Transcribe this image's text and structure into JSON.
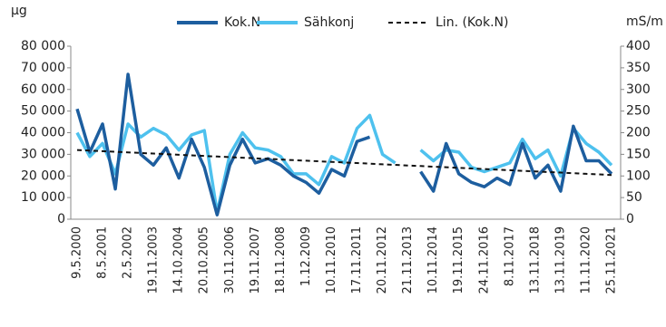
{
  "chart_data": {
    "type": "line",
    "y_unit": "µg",
    "y2_unit": "mS/m",
    "categories": [
      "9.5.2000",
      null,
      "8.5.2001",
      null,
      "2.5.2002",
      null,
      "19.11.2003",
      null,
      "14.10.2004",
      null,
      "20.10.2005",
      null,
      "30.11.2006",
      null,
      "19.11.2007",
      null,
      "18.11.2008",
      null,
      "1.12.2009",
      null,
      "10.11.2010",
      null,
      "17.11.2011",
      null,
      "20.11.2012",
      null,
      "21.11.2013",
      null,
      "10.11.2014",
      null,
      "19.11.2015",
      null,
      "24.11.2016",
      null,
      "8.11.2017",
      null,
      "13.11.2018",
      null,
      "13.11.2019",
      null,
      "11.11.2020",
      null,
      "25.11.2021"
    ],
    "series": [
      {
        "name": "Kok.N",
        "color": "#1d5e9f",
        "values": [
          51000,
          31000,
          44000,
          14000,
          67000,
          30000,
          25000,
          33000,
          19000,
          37000,
          24000,
          2000,
          25000,
          37000,
          26000,
          28000,
          25000,
          20000,
          17000,
          12000,
          23000,
          20000,
          36000,
          38000,
          null,
          null,
          null,
          22000,
          13000,
          35000,
          21000,
          17000,
          15000,
          19000,
          16000,
          35000,
          19000,
          25000,
          13000,
          43000,
          27000,
          27000,
          21000
        ]
      },
      {
        "name": "Sähkonj",
        "color": "#4ec1ee",
        "axis": "y2",
        "values": [
          200,
          145,
          175,
          105,
          220,
          190,
          210,
          195,
          160,
          195,
          205,
          15,
          150,
          200,
          165,
          160,
          145,
          105,
          105,
          80,
          145,
          130,
          210,
          240,
          150,
          130,
          null,
          160,
          135,
          160,
          155,
          120,
          110,
          120,
          130,
          185,
          140,
          160,
          100,
          210,
          175,
          155,
          125
        ]
      },
      {
        "name": "Lin. (Kok.N)",
        "color": "#111111",
        "dashed": true,
        "values": [
          32000,
          31725,
          31450,
          31175,
          30900,
          30625,
          30350,
          30075,
          29800,
          29525,
          29250,
          28975,
          28700,
          28425,
          28150,
          27875,
          27600,
          27325,
          27050,
          26775,
          26500,
          26225,
          25950,
          25675,
          25400,
          25125,
          24850,
          24575,
          24300,
          24025,
          23750,
          23475,
          23200,
          22925,
          22650,
          22375,
          22100,
          21825,
          21550,
          21275,
          21000,
          20725,
          20450
        ]
      }
    ],
    "ylim": [
      0,
      80000
    ],
    "yticks": [
      0,
      {
        "value": 10000,
        "label": "10 000"
      },
      {
        "value": 20000,
        "label": "20 000"
      },
      {
        "value": 30000,
        "label": "30 000"
      },
      {
        "value": 40000,
        "label": "40 000"
      },
      {
        "value": 50000,
        "label": "50 000"
      },
      {
        "value": 60000,
        "label": "60 000"
      },
      {
        "value": 70000,
        "label": "70 000"
      },
      {
        "value": 80000,
        "label": "80 000"
      }
    ],
    "y2lim": [
      0,
      400
    ],
    "y2ticks": [
      0,
      50,
      100,
      150,
      200,
      250,
      300,
      350,
      400
    ],
    "grid": false
  }
}
